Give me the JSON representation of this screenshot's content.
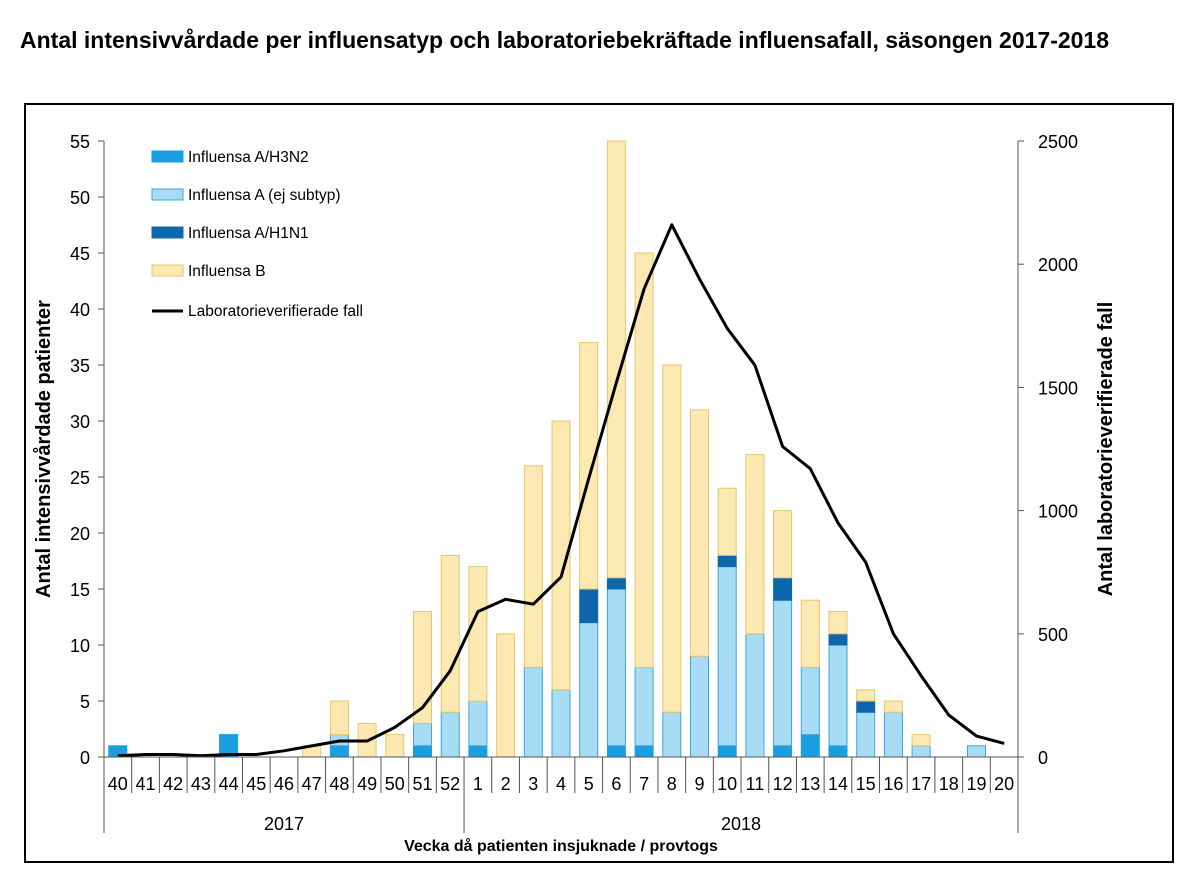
{
  "colors": {
    "h3n2": "#1a9ee2",
    "a_unsub": "#a7dcf4",
    "a_unsub_border": "#3aa6dd",
    "h1n1": "#0e67ad",
    "b": "#fce9b2",
    "b_border": "#e8c56d",
    "line": "#000000"
  },
  "chart_data": {
    "type": "bar",
    "stacked": true,
    "title": "Antal intensivvårdade per influensatyp och laboratoriebekräftade influensafall, säsongen 2017-2018",
    "xlabel": "Vecka då patienten insjuknade / provtogs",
    "ylabel": "Antal intensivvårdade patienter",
    "y2label": "Antal laboratorieverifierade fall",
    "ylim": [
      0,
      55
    ],
    "yticks": [
      "0",
      "5",
      "10",
      "15",
      "20",
      "25",
      "30",
      "35",
      "40",
      "45",
      "50",
      "55"
    ],
    "y2lim": [
      0,
      2500
    ],
    "y2ticks": [
      "0",
      "500",
      "1000",
      "1500",
      "2000",
      "2500"
    ],
    "categories": [
      "40",
      "41",
      "42",
      "43",
      "44",
      "45",
      "46",
      "47",
      "48",
      "49",
      "50",
      "51",
      "52",
      "1",
      "2",
      "3",
      "4",
      "5",
      "6",
      "7",
      "8",
      "9",
      "10",
      "11",
      "12",
      "13",
      "14",
      "15",
      "16",
      "17",
      "18",
      "19",
      "20"
    ],
    "year_groups": [
      {
        "label": "2017",
        "from": 0,
        "to": 12
      },
      {
        "label": "2018",
        "from": 13,
        "to": 32
      }
    ],
    "series": [
      {
        "name": "Influensa A/H3N2",
        "key": "h3n2",
        "values": [
          1,
          0,
          0,
          0,
          2,
          0,
          0,
          0,
          1,
          0,
          0,
          1,
          0,
          1,
          0,
          0,
          0,
          0,
          1,
          1,
          0,
          0,
          1,
          0,
          1,
          2,
          1,
          0,
          0,
          0,
          0,
          0,
          0
        ]
      },
      {
        "name": "Influensa A (ej subtyp)",
        "key": "a_unsub",
        "values": [
          0,
          0,
          0,
          0,
          0,
          0,
          0,
          0,
          1,
          0,
          0,
          2,
          4,
          4,
          0,
          8,
          6,
          12,
          14,
          7,
          4,
          9,
          16,
          11,
          13,
          6,
          9,
          4,
          4,
          1,
          0,
          1,
          0
        ]
      },
      {
        "name": "Influensa A/H1N1",
        "key": "h1n1",
        "values": [
          0,
          0,
          0,
          0,
          0,
          0,
          0,
          0,
          0,
          0,
          0,
          0,
          0,
          0,
          0,
          0,
          0,
          3,
          1,
          0,
          0,
          0,
          1,
          0,
          2,
          0,
          1,
          1,
          0,
          0,
          0,
          0,
          0
        ]
      },
      {
        "name": "Influensa B",
        "key": "b",
        "values": [
          0,
          0,
          0,
          0,
          0,
          0,
          0,
          1,
          3,
          3,
          2,
          10,
          14,
          12,
          11,
          18,
          24,
          22,
          39,
          37,
          31,
          22,
          6,
          16,
          6,
          6,
          2,
          1,
          1,
          1,
          0,
          0,
          0
        ]
      }
    ],
    "line": {
      "name": "Laboratorieverifierade fall",
      "axis": "right",
      "values": [
        5,
        10,
        10,
        5,
        10,
        10,
        25,
        45,
        65,
        65,
        120,
        200,
        350,
        590,
        640,
        620,
        730,
        1130,
        1520,
        1900,
        2160,
        1940,
        1740,
        1590,
        1260,
        1170,
        950,
        790,
        500,
        330,
        170,
        85,
        55
      ]
    }
  }
}
